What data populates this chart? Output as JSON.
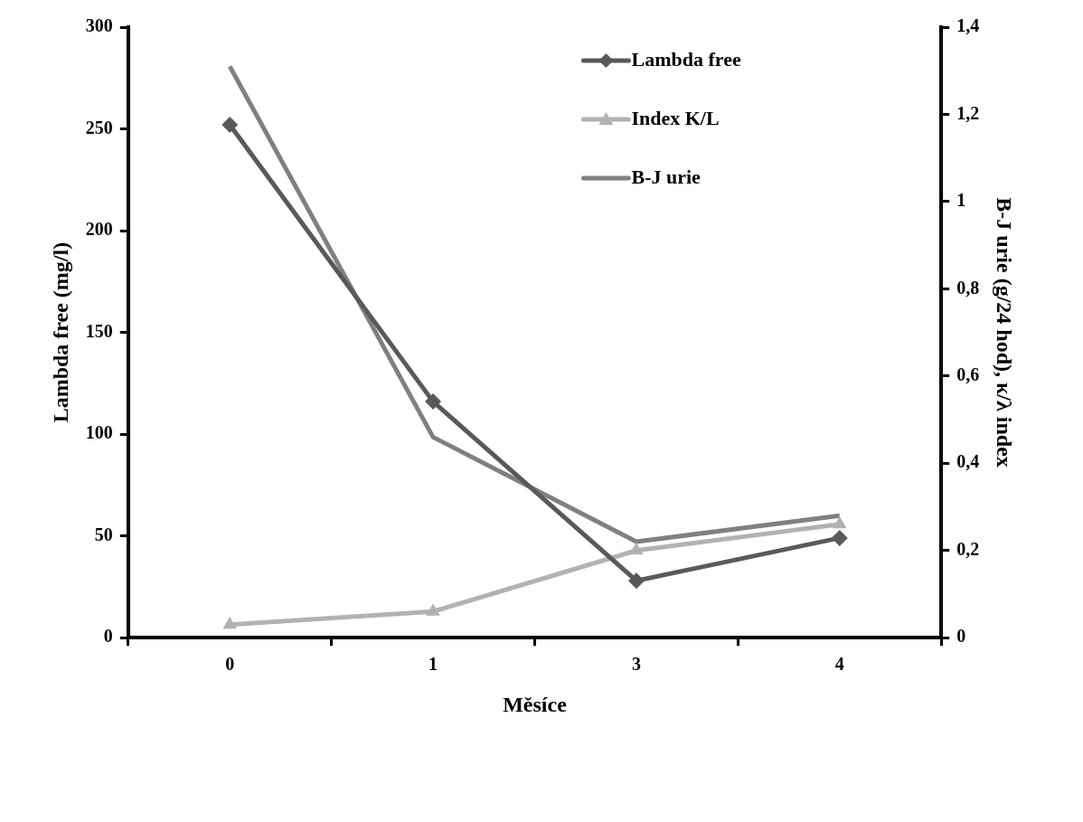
{
  "chart_data": {
    "type": "line",
    "xlabel": "Měsíce",
    "ylabel": "Lambda free (mg/l)",
    "y2label": "B-J urie (g/24 hod), κ/λ index",
    "categories": [
      "0",
      "1",
      "3",
      "4"
    ],
    "series": [
      {
        "name": "Lambda free",
        "color": "#595959",
        "marker": "diamond",
        "values": [
          252,
          116,
          28,
          49
        ]
      },
      {
        "name": "Index K/L",
        "color": "#b2b2b2",
        "marker": "triangle",
        "axis": "y2",
        "values": [
          0.03,
          0.06,
          0.2,
          0.26
        ]
      },
      {
        "name": "B-J urie",
        "color": "#808080",
        "marker": "none",
        "axis": "y2",
        "values": [
          1.31,
          0.46,
          0.22,
          0.28
        ]
      }
    ],
    "ylim": [
      0,
      300
    ],
    "yticks": [
      0,
      50,
      100,
      150,
      200,
      250,
      300
    ],
    "y2lim": [
      0,
      1.4
    ],
    "y2ticks": [
      0,
      {
        "value": 0.2,
        "label": "0,2"
      },
      {
        "value": 0.4,
        "label": "0,4"
      },
      {
        "value": 0.6,
        "label": "0,6"
      },
      {
        "value": 0.8,
        "label": "0,8"
      },
      1,
      {
        "value": 1.2,
        "label": "1,2"
      },
      {
        "value": 1.4,
        "label": "1,4"
      }
    ],
    "grid": false,
    "legend": "top right",
    "line_style": "solid"
  }
}
